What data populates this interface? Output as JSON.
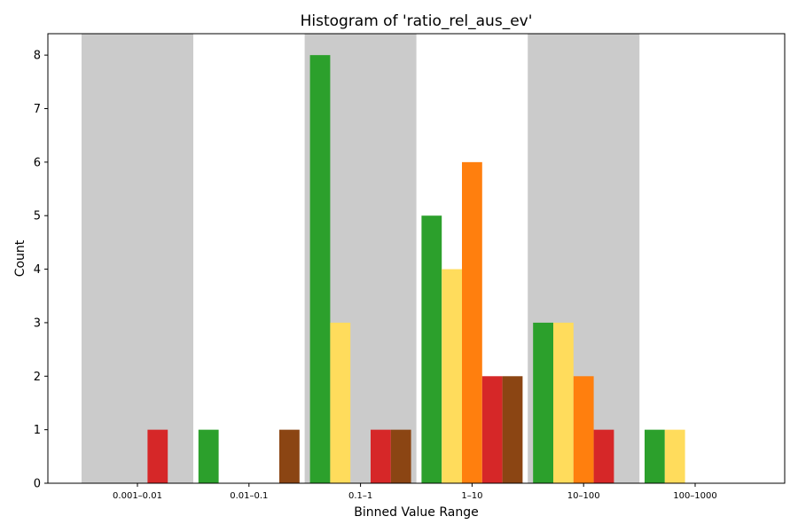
{
  "chart_data": {
    "type": "bar",
    "title": "Histogram of 'ratio_rel_aus_ev'",
    "xlabel": "Binned Value Range",
    "ylabel": "Count",
    "categories": [
      "0.001–0.01",
      "0.01–0.1",
      "0.1–1",
      "1–10",
      "10–100",
      "100–1000"
    ],
    "ylim": [
      0,
      8.4
    ],
    "yticks": [
      0,
      1,
      2,
      3,
      4,
      5,
      6,
      7,
      8
    ],
    "grid": false,
    "legend": false,
    "shaded_bands": [
      "0.001–0.01",
      "0.1–1",
      "10–100"
    ],
    "band_color": "#cbcbcb",
    "series": [
      {
        "color": "#2ca02c",
        "values": [
          0,
          1,
          8,
          5,
          3,
          1
        ]
      },
      {
        "color": "#ffdc5c",
        "values": [
          0,
          0,
          3,
          4,
          3,
          1
        ]
      },
      {
        "color": "#ff7f0e",
        "values": [
          0,
          0,
          0,
          6,
          2,
          0
        ]
      },
      {
        "color": "#d62728",
        "values": [
          1,
          0,
          1,
          2,
          1,
          0
        ]
      },
      {
        "color": "#8b4513",
        "values": [
          0,
          1,
          1,
          2,
          0,
          0
        ]
      }
    ]
  }
}
